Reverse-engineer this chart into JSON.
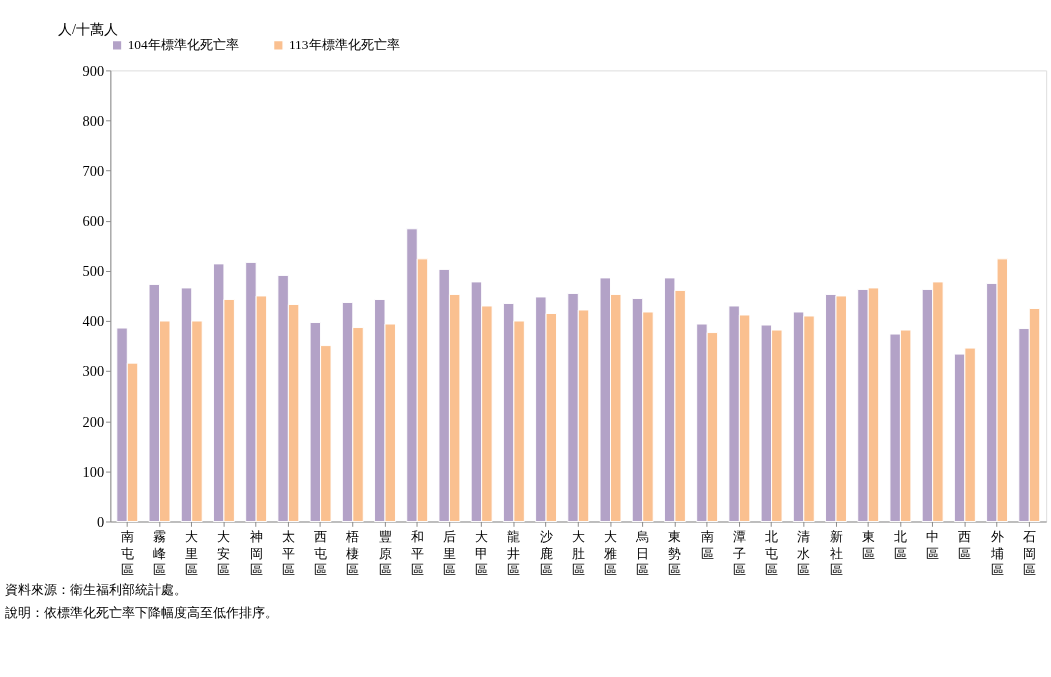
{
  "chart_data": {
    "type": "bar",
    "ylabel": "人/十萬人",
    "categories": [
      "南屯區",
      "霧峰區",
      "大里區",
      "大安區",
      "神岡區",
      "太平區",
      "西屯區",
      "梧棲區",
      "豐原區",
      "和平區",
      "后里區",
      "大甲區",
      "龍井區",
      "沙鹿區",
      "大肚區",
      "大雅區",
      "烏日區",
      "東勢區",
      "南區",
      "潭子區",
      "北屯區",
      "清水區",
      "新社區",
      "東區",
      "北區",
      "中區",
      "西區",
      "外埔區",
      "石岡區"
    ],
    "series": [
      {
        "name": "104年標準化死亡率",
        "color": "#b3a2c7",
        "values": [
          386,
          473,
          466,
          514,
          517,
          491,
          397,
          437,
          443,
          584,
          503,
          478,
          435,
          448,
          455,
          486,
          445,
          486,
          394,
          430,
          392,
          418,
          453,
          463,
          374,
          463,
          334,
          475,
          385
        ]
      },
      {
        "name": "113年標準化死亡率",
        "color": "#fac090",
        "values": [
          316,
          400,
          400,
          443,
          450,
          433,
          351,
          387,
          394,
          524,
          453,
          430,
          400,
          415,
          422,
          453,
          418,
          461,
          377,
          412,
          382,
          410,
          450,
          466,
          382,
          478,
          346,
          524,
          425
        ]
      }
    ],
    "ylim": [
      0,
      900
    ],
    "yticks": [
      0,
      100,
      200,
      300,
      400,
      500,
      600,
      700,
      800,
      900
    ],
    "grid": false,
    "legend": "top",
    "annotations": [
      "資料來源：衛生福利部統計處。",
      "說明：依標準化死亡率下降幅度高至低作排序。"
    ]
  }
}
